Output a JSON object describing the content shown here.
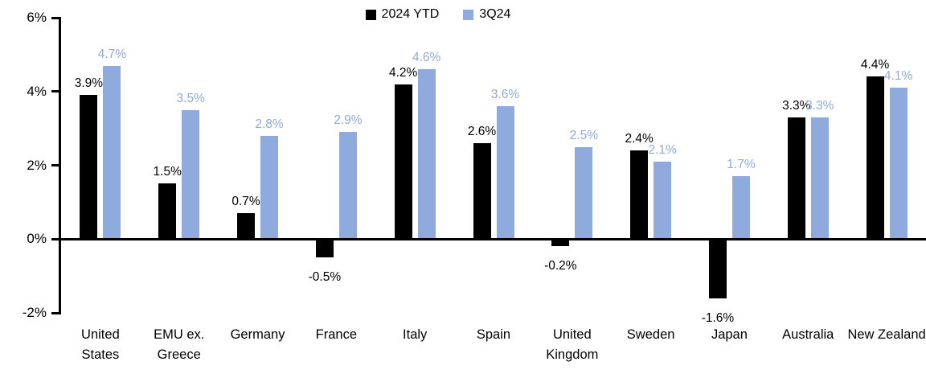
{
  "chart_data": {
    "type": "bar",
    "title": "",
    "xlabel": "",
    "ylabel": "",
    "categories": [
      "United States",
      "EMU ex. Greece",
      "Germany",
      "France",
      "Italy",
      "Spain",
      "United Kingdom",
      "Sweden",
      "Japan",
      "Australia",
      "New Zealand"
    ],
    "series": [
      {
        "name": "2024 YTD",
        "color": "#000000",
        "values": [
          3.9,
          1.5,
          0.7,
          -0.5,
          4.2,
          2.6,
          -0.2,
          2.4,
          -1.6,
          3.3,
          4.4
        ],
        "labels": [
          "3.9%",
          "1.5%",
          "0.7%",
          "-0.5%",
          "4.2%",
          "2.6%",
          "-0.2%",
          "2.4%",
          "-1.6%",
          "3.3%",
          "4.4%"
        ]
      },
      {
        "name": "3Q24",
        "color": "#8FAADC",
        "values": [
          4.7,
          3.5,
          2.8,
          2.9,
          4.6,
          3.6,
          2.5,
          2.1,
          1.7,
          3.3,
          4.1
        ],
        "labels": [
          "4.7%",
          "3.5%",
          "2.8%",
          "2.9%",
          "4.6%",
          "3.6%",
          "2.5%",
          "2.1%",
          "1.7%",
          "3.3%",
          "4.1%"
        ]
      }
    ],
    "y_axis": {
      "min": -2,
      "max": 6,
      "tick_step": 2,
      "ticks": [
        -2,
        0,
        2,
        4,
        6
      ],
      "tick_labels": [
        "-2%",
        "0%",
        "2%",
        "4%",
        "6%"
      ]
    },
    "grid": false,
    "legend_position": "top-center",
    "axis_color": "#000000",
    "background_color": "#ffffff"
  }
}
